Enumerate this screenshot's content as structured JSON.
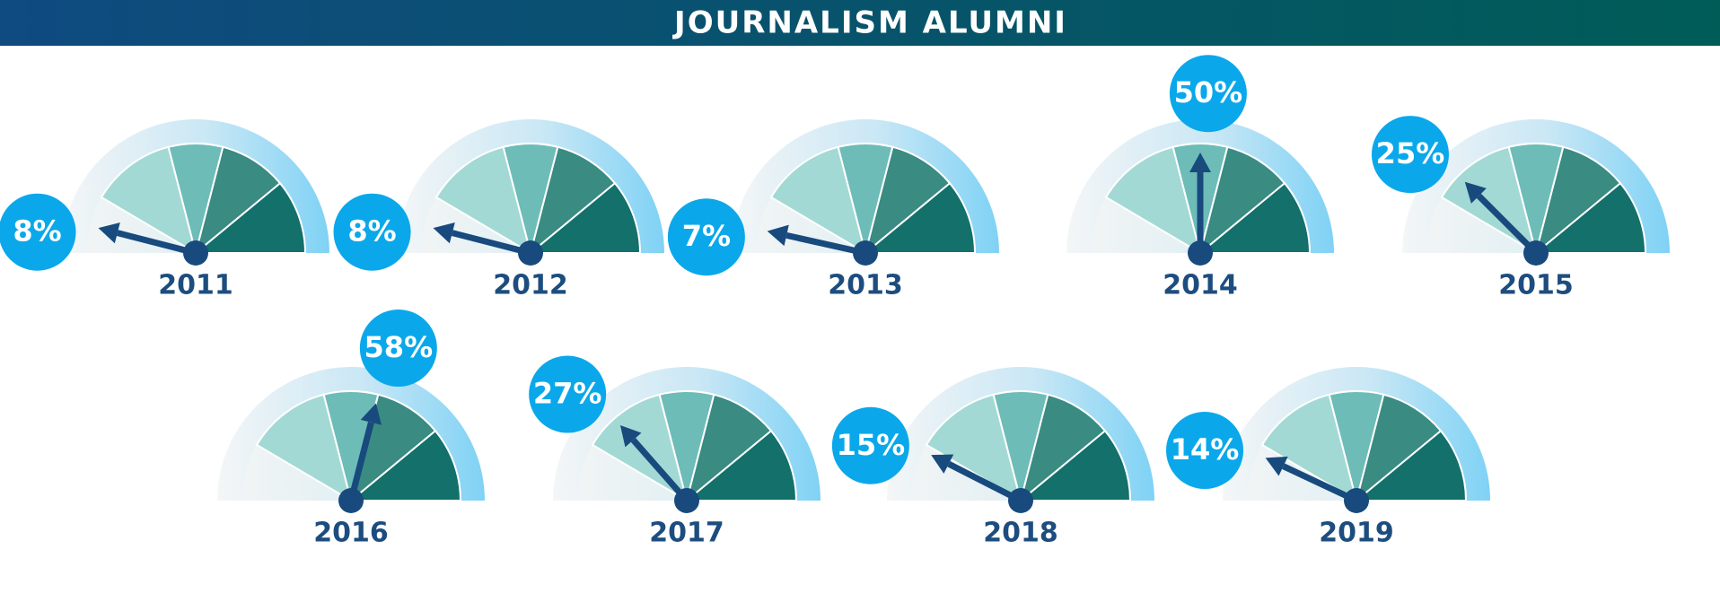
{
  "chart_data": {
    "type": "gauge",
    "title": "JOURNALISM ALUMNI",
    "categories": [
      "2011",
      "2012",
      "2013",
      "2014",
      "2015",
      "2016",
      "2017",
      "2018",
      "2019"
    ],
    "values": [
      8,
      8,
      7,
      50,
      25,
      58,
      27,
      15,
      14
    ],
    "value_labels": [
      "8%",
      "8%",
      "7%",
      "50%",
      "25%",
      "58%",
      "27%",
      "15%",
      "14%"
    ],
    "ylim": [
      0,
      100
    ],
    "needle_color": "#184a7e",
    "bubble_color": "#0aa8ea"
  }
}
